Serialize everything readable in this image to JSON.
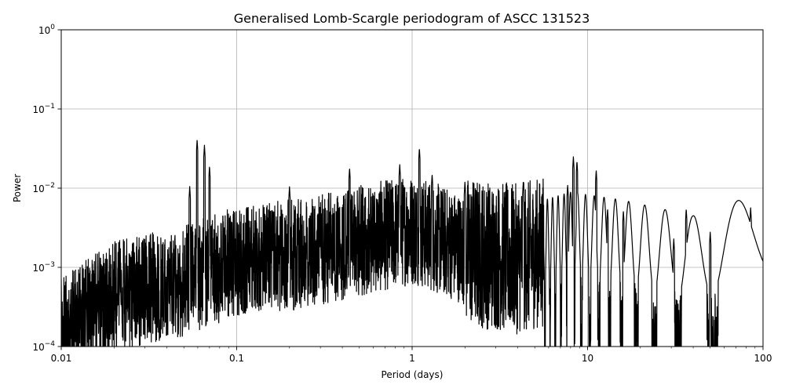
{
  "chart_data": {
    "type": "line",
    "title": "Generalised Lomb-Scargle periodogram of ASCC 131523",
    "xlabel": "Period (days)",
    "ylabel": "Power",
    "xscale": "log",
    "yscale": "log",
    "xlim": [
      0.01,
      100
    ],
    "ylim": [
      0.0001,
      1
    ],
    "grid": true,
    "x_ticks": [
      {
        "value": 0.01,
        "label": "0.01"
      },
      {
        "value": 0.1,
        "label": "0.1"
      },
      {
        "value": 1,
        "label": "1"
      },
      {
        "value": 10,
        "label": "10"
      },
      {
        "value": 100,
        "label": "100"
      }
    ],
    "y_ticks": [
      {
        "value": 0.0001,
        "base": "10",
        "exp": "−4"
      },
      {
        "value": 0.001,
        "base": "10",
        "exp": "−3"
      },
      {
        "value": 0.01,
        "base": "10",
        "exp": "−2"
      },
      {
        "value": 0.1,
        "base": "10",
        "exp": "−1"
      },
      {
        "value": 1,
        "base": "10",
        "exp": "0"
      }
    ],
    "series": [
      {
        "color": "#000000",
        "peaks": [
          {
            "period": 0.0595,
            "power": 0.041
          },
          {
            "period": 0.0655,
            "power": 0.035
          },
          {
            "period": 0.07,
            "power": 0.019
          },
          {
            "period": 0.054,
            "power": 0.0105
          },
          {
            "period": 0.2,
            "power": 0.0105
          },
          {
            "period": 0.44,
            "power": 0.018
          },
          {
            "period": 0.85,
            "power": 0.02
          },
          {
            "period": 1.1,
            "power": 0.032
          },
          {
            "period": 1.3,
            "power": 0.015
          },
          {
            "period": 2.0,
            "power": 0.012
          },
          {
            "period": 4.3,
            "power": 0.012
          },
          {
            "period": 7.7,
            "power": 0.011
          },
          {
            "period": 8.3,
            "power": 0.025
          },
          {
            "period": 8.7,
            "power": 0.022
          },
          {
            "period": 11.2,
            "power": 0.017
          },
          {
            "period": 13.0,
            "power": 0.0055
          },
          {
            "period": 16.0,
            "power": 0.0052
          },
          {
            "period": 21.0,
            "power": 0.0038
          },
          {
            "period": 31.0,
            "power": 0.0023
          },
          {
            "period": 36.5,
            "power": 0.0055
          },
          {
            "period": 50.0,
            "power": 0.0028
          },
          {
            "period": 65.0,
            "power": 0.004
          },
          {
            "period": 85.0,
            "power": 0.0057
          }
        ]
      }
    ]
  }
}
